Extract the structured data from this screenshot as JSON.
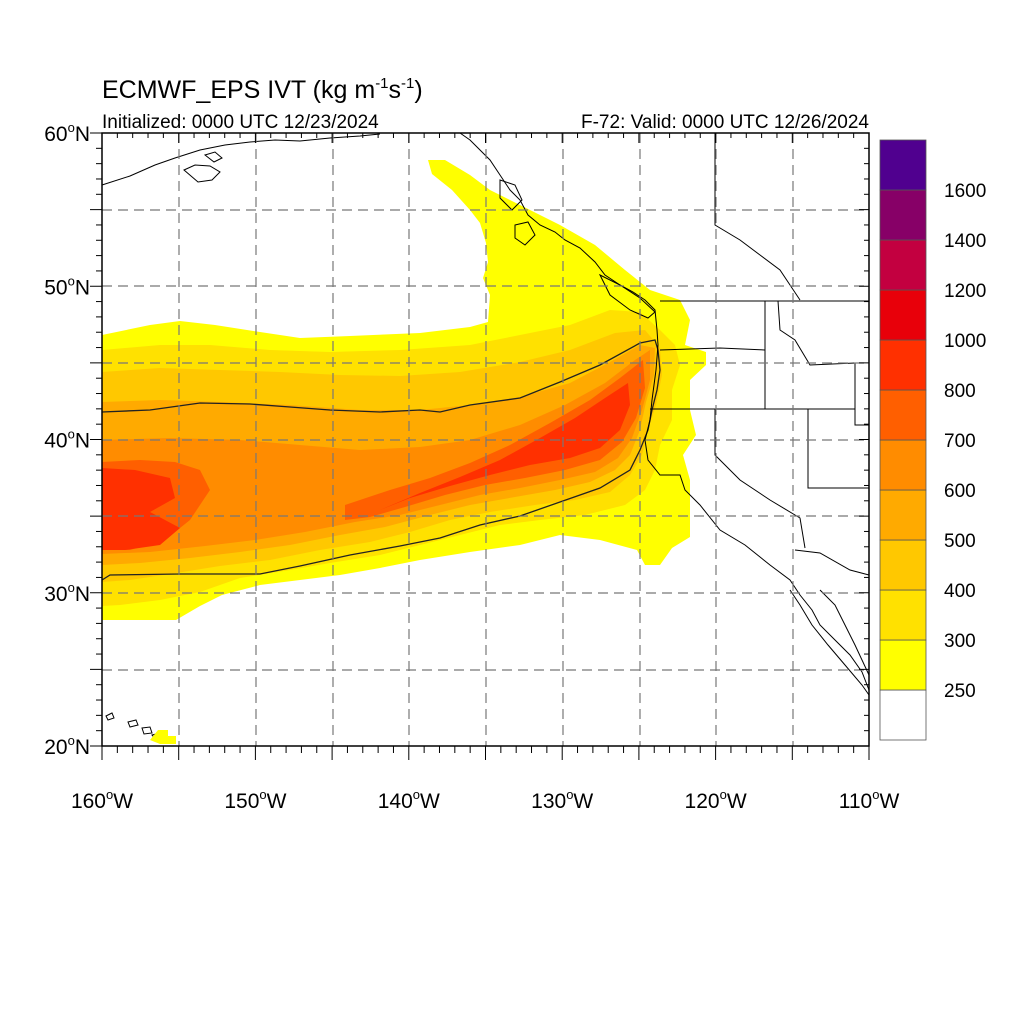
{
  "title": {
    "main": "ECMWF_EPS IVT (kg m",
    "sup1": "-1",
    "mid": "s",
    "sup2": "-1",
    "end": ")"
  },
  "initialized": "Initialized: 0000 UTC 12/23/2024",
  "valid": "F-72: Valid: 0000 UTC 12/26/2024",
  "lon_ticks": [
    {
      "deg": "160",
      "hemi": "W"
    },
    {
      "deg": "150",
      "hemi": "W"
    },
    {
      "deg": "140",
      "hemi": "W"
    },
    {
      "deg": "130",
      "hemi": "W"
    },
    {
      "deg": "120",
      "hemi": "W"
    },
    {
      "deg": "110",
      "hemi": "W"
    }
  ],
  "lat_ticks": [
    {
      "deg": "60",
      "hemi": "N"
    },
    {
      "deg": "50",
      "hemi": "N"
    },
    {
      "deg": "40",
      "hemi": "N"
    },
    {
      "deg": "30",
      "hemi": "N"
    },
    {
      "deg": "20",
      "hemi": "N"
    }
  ],
  "map_extent": {
    "lon": [
      -160,
      -110
    ],
    "lat": [
      20,
      60
    ]
  },
  "colorbar": {
    "labels": [
      "250",
      "300",
      "400",
      "500",
      "600",
      "700",
      "800",
      "1000",
      "1200",
      "1400",
      "1600"
    ],
    "colors": [
      "#ffffff",
      "#ffff00",
      "#ffe100",
      "#ffc800",
      "#ffaa00",
      "#ff8c00",
      "#ff5f00",
      "#ff3000",
      "#e8000a",
      "#c30040",
      "#870067",
      "#50008f"
    ]
  }
}
